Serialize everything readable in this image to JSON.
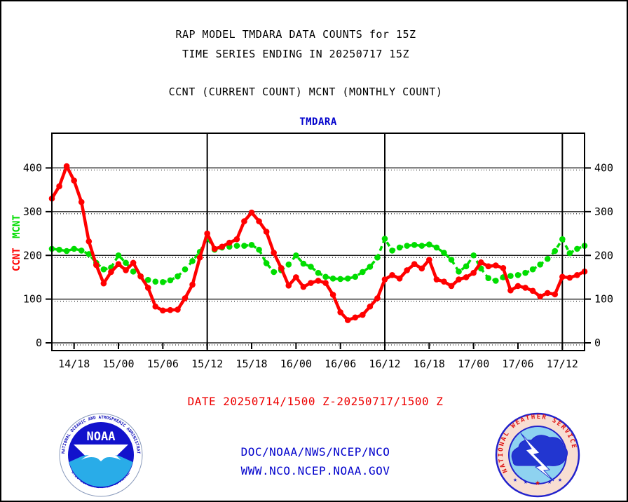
{
  "titles": {
    "line1": "RAP MODEL TMDARA DATA COUNTS for 15Z",
    "line2": "TIME SERIES ENDING IN 20250717 15Z",
    "line3": "CCNT (CURRENT COUNT) MCNT (MONTHLY COUNT)",
    "chart_title": "TMDARA"
  },
  "footer": {
    "date_range": "DATE 20250714/1500 Z-20250717/1500 Z",
    "org": "DOC/NOAA/NWS/NCEP/NCO",
    "url": "WWW.NCO.NCEP.NOAA.GOV"
  },
  "logos": {
    "noaa": {
      "center_text": "NOAA",
      "ring_top": "NATIONAL OCEANIC AND ATMOSPHERIC ADMINISTRATION",
      "ring_bottom": "U.S. DEPARTMENT OF COMMERCE"
    },
    "nws": {
      "ring": "NATIONAL WEATHER SERVICE",
      "star": "★"
    }
  },
  "colors": {
    "ccnt": "#ff0000",
    "mcnt": "#00dd00",
    "blue_text": "#0000cc",
    "axis": "#000000"
  },
  "chart_data": {
    "type": "line",
    "title": "TMDARA",
    "xlabel": "",
    "ylabel_left_stack": [
      "CCNT",
      "MCNT"
    ],
    "xlim_labels": [
      "20250714/1500 Z",
      "20250717/1500 Z"
    ],
    "x_interval_hours": 1,
    "total_hours": 72,
    "y_ticks": [
      0,
      100,
      200,
      300,
      400
    ],
    "ylim": [
      0,
      480
    ],
    "grid": "horizontal-solid-plus-dotted",
    "x_tick_labels": [
      "14/18",
      "15/00",
      "15/06",
      "15/12",
      "15/18",
      "16/00",
      "16/06",
      "16/12",
      "16/18",
      "17/00",
      "17/06",
      "17/12"
    ],
    "x_tick_hours": [
      3,
      9,
      15,
      21,
      27,
      33,
      39,
      45,
      51,
      57,
      63,
      69
    ],
    "vline_hours": [
      21,
      45,
      69
    ],
    "vline_labels": [
      "15/12",
      "16/12",
      "17/12"
    ],
    "series": [
      {
        "name": "MCNT",
        "color": "#00dd00",
        "style": "dashed",
        "marker": "circle",
        "values": [
          215,
          213,
          210,
          215,
          211,
          203,
          183,
          168,
          172,
          200,
          183,
          163,
          152,
          144,
          140,
          139,
          143,
          152,
          168,
          187,
          208,
          240,
          213,
          218,
          220,
          222,
          222,
          224,
          213,
          182,
          162,
          166,
          179,
          200,
          181,
          174,
          160,
          151,
          147,
          146,
          147,
          151,
          162,
          174,
          195,
          238,
          211,
          218,
          222,
          224,
          222,
          225,
          218,
          206,
          190,
          163,
          175,
          200,
          170,
          148,
          142,
          150,
          153,
          155,
          160,
          168,
          179,
          192,
          210,
          237,
          205,
          215,
          222
        ]
      },
      {
        "name": "CCNT",
        "color": "#ff0000",
        "style": "solid",
        "marker": "circle",
        "values": [
          330,
          358,
          404,
          371,
          322,
          232,
          178,
          136,
          162,
          180,
          166,
          183,
          152,
          126,
          83,
          74,
          75,
          76,
          102,
          133,
          195,
          250,
          215,
          220,
          229,
          237,
          278,
          298,
          278,
          254,
          206,
          171,
          131,
          150,
          128,
          137,
          142,
          137,
          110,
          70,
          52,
          58,
          64,
          83,
          102,
          145,
          155,
          147,
          166,
          180,
          170,
          190,
          145,
          140,
          130,
          145,
          150,
          160,
          184,
          175,
          177,
          171,
          120,
          130,
          126,
          119,
          106,
          114,
          111,
          151,
          149,
          155,
          163
        ]
      }
    ]
  }
}
